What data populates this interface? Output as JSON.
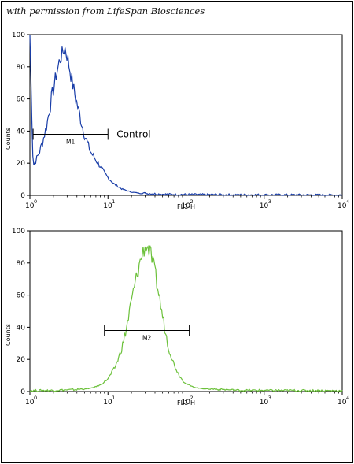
{
  "caption": "with permission from LifeSpan Biosciences",
  "chart_data": [
    {
      "type": "line",
      "x_scale": "log",
      "xlim": [
        1,
        10000
      ],
      "ylim": [
        0,
        100
      ],
      "xlabel": "FL1-H",
      "ylabel": "Counts",
      "xtick_base": "10",
      "xtick_exponents": [
        "0",
        "1",
        "2",
        "3",
        "4"
      ],
      "yticks": [
        "0",
        "20",
        "40",
        "60",
        "80",
        "100"
      ],
      "color": "#1a3ea8",
      "grid": false,
      "series": [
        {
          "x": [
            1.0,
            1.1,
            1.2,
            1.35,
            1.5,
            1.65,
            1.8,
            2.0,
            2.2,
            2.4,
            2.6,
            2.8,
            3.0,
            3.2,
            3.5,
            3.8,
            4.2,
            4.6,
            5.0,
            5.5,
            6.0,
            7.0,
            8.0,
            9.0,
            10.0,
            12.0,
            15.0,
            20.0,
            30.0,
            50.0,
            100.0,
            300.0,
            10000.0
          ],
          "y": [
            100,
            18,
            22,
            28,
            36,
            44,
            55,
            66,
            76,
            84,
            88,
            92,
            87,
            80,
            70,
            62,
            53,
            45,
            38,
            32,
            27,
            22,
            18,
            14,
            11,
            7,
            4,
            2,
            1,
            0.5,
            0.3,
            0.2,
            0
          ]
        }
      ],
      "markers": [
        {
          "label": "M1",
          "x_start": 1.1,
          "x_end": 10.0,
          "y": 38
        }
      ],
      "annotations": [
        "Control"
      ]
    },
    {
      "type": "line",
      "x_scale": "log",
      "xlim": [
        1,
        10000
      ],
      "ylim": [
        0,
        100
      ],
      "xlabel": "FL1-H",
      "ylabel": "Counts",
      "xtick_base": "10",
      "xtick_exponents": [
        "0",
        "1",
        "2",
        "3",
        "4"
      ],
      "yticks": [
        "0",
        "20",
        "40",
        "60",
        "80",
        "100"
      ],
      "color": "#6cc13b",
      "grid": false,
      "series": [
        {
          "x": [
            1.0,
            2.0,
            4.0,
            6.0,
            8.0,
            10.0,
            12.0,
            14.0,
            16.0,
            18.0,
            20.0,
            22.0,
            25.0,
            28.0,
            31.0,
            35.0,
            40.0,
            45.0,
            50.0,
            55.0,
            60.0,
            70.0,
            80.0,
            90.0,
            100.0,
            120.0,
            150.0,
            200.0,
            300.0,
            500.0,
            1000.0,
            10000.0
          ],
          "y": [
            0.3,
            0.5,
            1,
            2,
            4,
            8,
            14,
            22,
            32,
            44,
            56,
            66,
            78,
            87,
            91,
            86,
            74,
            60,
            47,
            36,
            27,
            17,
            11,
            7,
            5,
            3,
            2,
            1.5,
            1,
            0.5,
            0.5,
            0.3
          ]
        }
      ],
      "markers": [
        {
          "label": "M2",
          "x_start": 9.0,
          "x_end": 110.0,
          "y": 38
        }
      ],
      "annotations": []
    }
  ]
}
